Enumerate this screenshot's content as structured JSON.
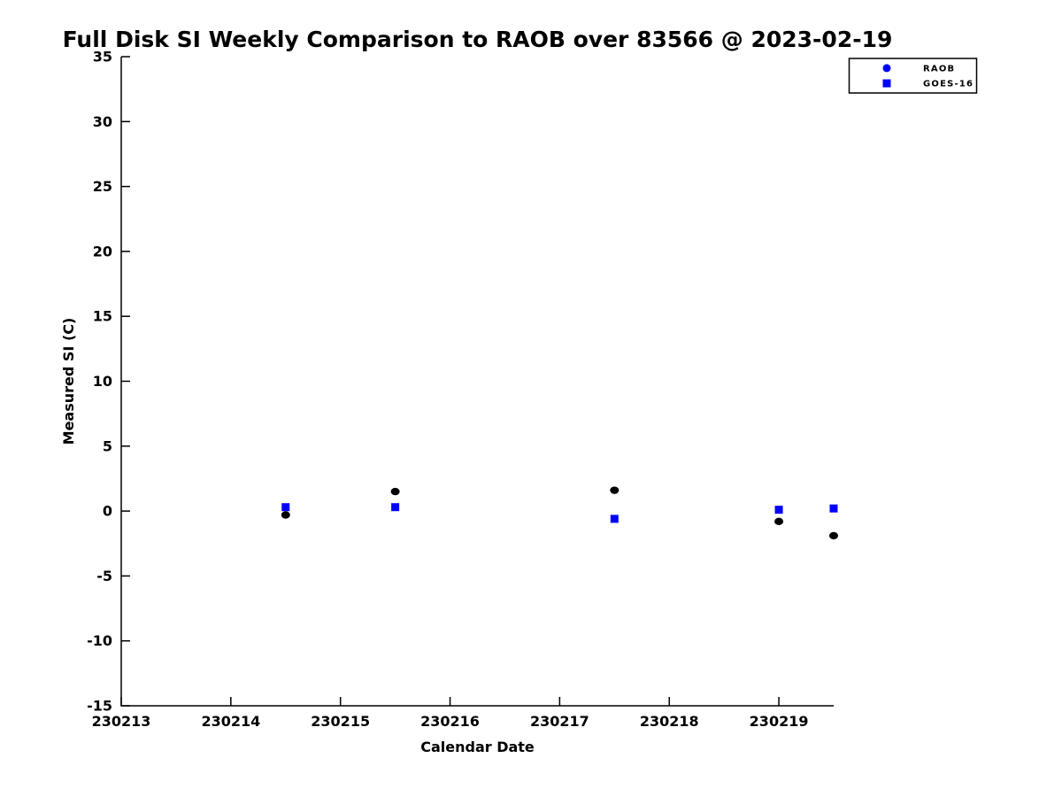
{
  "figure": {
    "background_color": "#ffffff",
    "axis_color": "#000000",
    "text_color": "#000000"
  },
  "chart_data": {
    "type": "scatter",
    "title": "Full Disk SI Weekly Comparison to RAOB over 83566 @ 2023-02-19",
    "xlabel": "Calendar Date",
    "ylabel": "Measured SI (C)",
    "xlim": [
      230213,
      230219.5
    ],
    "ylim": [
      -15,
      35
    ],
    "grid": false,
    "x_ticks": {
      "values": [
        230213,
        230214,
        230215,
        230216,
        230217,
        230218,
        230219
      ],
      "labels": [
        "230213",
        "230214",
        "230215",
        "230216",
        "230217",
        "230218",
        "230219"
      ]
    },
    "y_ticks": {
      "values": [
        -15,
        -10,
        -5,
        0,
        5,
        10,
        15,
        20,
        25,
        30,
        35
      ],
      "labels": [
        "-15",
        "-10",
        "-5",
        "0",
        "5",
        "10",
        "15",
        "20",
        "25",
        "30",
        "35"
      ]
    },
    "series": [
      {
        "name": "GOES-16",
        "marker": "square",
        "color": "#0000ff",
        "x": [
          230214.5,
          230215.5,
          230217.5,
          230219.0,
          230219.5
        ],
        "y": [
          0.3,
          0.3,
          -0.6,
          0.1,
          0.2
        ]
      },
      {
        "name": "RAOB",
        "marker": "circle",
        "color": "#000000",
        "x": [
          230214.5,
          230215.5,
          230217.5,
          230219.0,
          230219.5
        ],
        "y": [
          -0.3,
          1.5,
          1.6,
          -0.8,
          -1.9
        ]
      }
    ],
    "legend": {
      "position": "top-right",
      "entries": [
        {
          "label": "RAOB",
          "marker": "circle",
          "marker_color": "#0000ff"
        },
        {
          "label": "GOES-16",
          "marker": "square",
          "marker_color": "#0000ff"
        }
      ]
    }
  }
}
